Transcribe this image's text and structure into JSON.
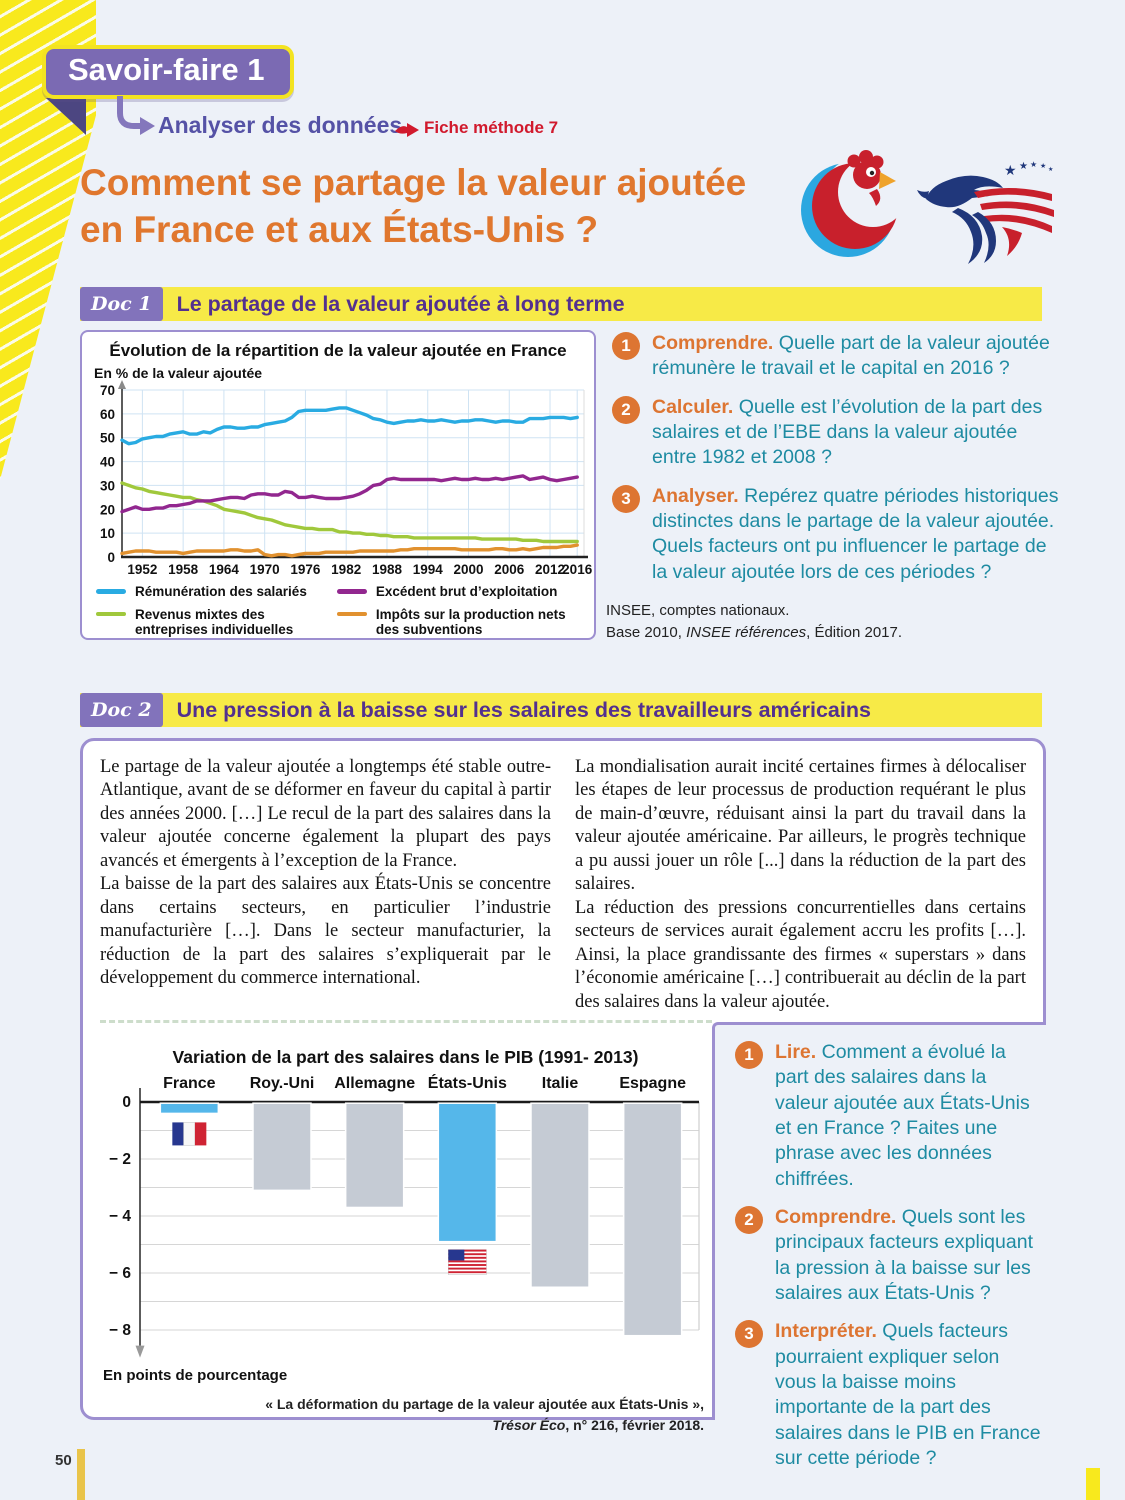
{
  "page": {
    "number": "50"
  },
  "colors": {
    "accent_purple": "#7b6ab3",
    "accent_yellow": "#f7ea47",
    "title_orange": "#e0772e",
    "question_teal": "#1e8ba2",
    "question_orange": "#dd7532",
    "method_red": "#d11a2d",
    "series_blue": "#29abe2",
    "series_green": "#a0c83c",
    "series_purple": "#92278f",
    "series_orange": "#e1912f",
    "bar_highlight": "#55b7ea",
    "bar_gray": "#c5cbd4"
  },
  "header": {
    "banner": "Savoir-faire 1",
    "subtitle": "Analyser des données",
    "method": "Fiche méthode 7",
    "title1": "Comment se partage la valeur ajoutée",
    "title2": "en France et aux États-Unis ?"
  },
  "doc1": {
    "tag": "Doc 1",
    "heading": "Le partage de la valeur ajoutée à long terme",
    "chart_title": "Évolution de la répartition de la valeur ajoutée en France",
    "chart_unit": "En % de la valeur ajoutée",
    "questions": [
      {
        "num": "1",
        "lead": "Comprendre.",
        "text": "Quelle part de la valeur ajoutée rémunère le travail et le capital en 2016 ?"
      },
      {
        "num": "2",
        "lead": "Calculer.",
        "text": "Quelle est l’évolution de la part des salaires et de l’EBE dans la valeur ajoutée entre 1982 et 2008 ?"
      },
      {
        "num": "3",
        "lead": "Analyser.",
        "text": "Repérez quatre périodes historiques distinctes dans le partage de la valeur ajoutée. Quels facteurs ont pu influencer le partage de la valeur ajoutée lors de ces périodes ?"
      }
    ],
    "source": {
      "l1": "INSEE, comptes nationaux.",
      "l2a": "Base 2010, ",
      "l2i": "INSEE références",
      "l2b": ", Édition 2017."
    }
  },
  "doc2": {
    "tag": "Doc 2",
    "heading": "Une pression à la baisse sur les salaires des travailleurs américains",
    "p1": "Le partage de la valeur ajoutée a longtemps été stable outre-Atlantique, avant de se déformer en faveur du capital à partir des années 2000. […] Le recul de la part des salaires dans la valeur ajoutée concerne également la plupart des pays avancés et émergents à l’exception de la France.",
    "p2": "La baisse de la part des salaires aux États-Unis se concentre dans certains secteurs, en particulier l’industrie manufacturière […]. Dans le secteur manufacturier, la réduction de la part des salaires s’expliquerait par le développement du commerce international.",
    "p3": "La mondialisation aurait incité certaines firmes à délocaliser les étapes de leur processus de production requérant le plus de main-d’œuvre, réduisant ainsi la part du travail dans la valeur ajoutée américaine. Par ailleurs, le progrès technique a pu aussi jouer un rôle [...] dans la réduction de la part des salaires.",
    "p4": "La réduction des pressions concurrentielles dans certains secteurs de services aurait également accru les profits […]. Ainsi, la place grandissante des firmes « superstars » dans l’économie américaine […] contribuerait au déclin de la part des salaires dans la valeur ajoutée.",
    "chart_title": "Variation de la part des salaires dans le PIB  (1991- 2013)",
    "axis_note": "En points de pourcentage",
    "caption": {
      "l1": "« La déformation du partage de la valeur ajoutée aux États-Unis »,",
      "l2i": "Trésor Éco",
      "l2b": ", n° 216, février 2018."
    },
    "questions": [
      {
        "num": "1",
        "lead": "Lire.",
        "text": "Comment a évolué la part des salaires dans la valeur ajoutée aux États-Unis et en France ? Faites une phrase avec les données chiffrées."
      },
      {
        "num": "2",
        "lead": "Comprendre.",
        "text": "Quels sont les principaux facteurs expliquant la pression à la baisse sur les salaires aux États-Unis ?"
      },
      {
        "num": "3",
        "lead": "Interpréter.",
        "text": "Quels facteurs pourraient expliquer selon vous la baisse moins importante de la part des salaires dans le PIB en France sur cette période ?"
      }
    ]
  },
  "chart_data": [
    {
      "type": "line",
      "title": "Évolution de la répartition de la valeur ajoutée en France",
      "ylabel": "En % de la valeur ajoutée",
      "x_start": 1949,
      "x_end": 2016,
      "x_axis_end": 2017,
      "x_ticks": [
        1952,
        1958,
        1964,
        1970,
        1976,
        1982,
        1988,
        1994,
        2000,
        2006,
        2012,
        2016
      ],
      "y_ticks": [
        0,
        10,
        20,
        30,
        40,
        50,
        60,
        70
      ],
      "ylim": [
        0,
        70
      ],
      "grid": true,
      "legend_position": "below",
      "series": [
        {
          "name": "Rémunération des salariés",
          "color": "#29abe2",
          "values": [
            49,
            47.5,
            48,
            49.5,
            50,
            50.5,
            50.5,
            51.5,
            52,
            52.5,
            51.5,
            51.5,
            52.5,
            52,
            53.5,
            54.5,
            54.5,
            54,
            54,
            54.5,
            54.5,
            55.5,
            56,
            56.5,
            57,
            58.5,
            61,
            61.5,
            61.5,
            61.5,
            61.5,
            62,
            62.5,
            62.5,
            61.5,
            60.5,
            59.5,
            58,
            57.5,
            56.5,
            56,
            56.5,
            57,
            57,
            57.5,
            57,
            57,
            57.5,
            57,
            56.5,
            57,
            57,
            57.5,
            57.5,
            57,
            56.5,
            57,
            57,
            56.5,
            56.5,
            58,
            58,
            58,
            58.5,
            58.5,
            58.5,
            58,
            58.5
          ]
        },
        {
          "name": "Revenus mixtes des entreprises individuelles",
          "color": "#a0c83c",
          "values": [
            31,
            30,
            29,
            28.5,
            27.5,
            27,
            26.5,
            26,
            25.5,
            25,
            25,
            24,
            23.5,
            22.5,
            21.5,
            20,
            19.5,
            19,
            18.5,
            17.5,
            16.5,
            16,
            15.5,
            14.5,
            13.5,
            13,
            12.5,
            12,
            12,
            11.5,
            11.5,
            11.5,
            10.5,
            10.5,
            10,
            10,
            9.5,
            9.5,
            9,
            9,
            8.5,
            8.5,
            8.5,
            8,
            8,
            8,
            8,
            8,
            8,
            8,
            8,
            8,
            8,
            7.5,
            7.5,
            7.5,
            7.5,
            7.5,
            7.5,
            7,
            7,
            7,
            6.5,
            6.5,
            6.5,
            6.5,
            6.5,
            6.5
          ]
        },
        {
          "name": "Excédent brut d’exploitation",
          "color": "#92278f",
          "values": [
            19,
            20,
            21,
            20,
            20,
            20.5,
            20.5,
            21.5,
            21.5,
            22,
            22.5,
            23.5,
            23.5,
            23.5,
            24,
            24.5,
            25,
            25,
            24.5,
            26,
            26.5,
            26.5,
            26,
            26,
            27.5,
            27,
            25,
            25,
            25.5,
            25,
            24.5,
            24.5,
            24.5,
            25,
            25.5,
            26.5,
            28,
            30,
            30.5,
            32.5,
            33,
            32.5,
            32.5,
            32.5,
            32.5,
            32.5,
            32.5,
            32,
            32.5,
            33,
            32.5,
            32.5,
            33,
            32.5,
            32.5,
            33,
            32.5,
            33,
            33.5,
            34,
            32.5,
            33,
            33.5,
            32.5,
            32,
            32.5,
            33,
            33.5
          ]
        },
        {
          "name": "Impôts sur la production nets des subventions",
          "color": "#e1912f",
          "values": [
            1.5,
            2,
            2.5,
            2.5,
            2.5,
            2,
            2,
            2,
            2,
            1.5,
            2,
            2.5,
            2.5,
            2.5,
            2.5,
            2.5,
            3,
            3,
            2.5,
            2.5,
            3,
            1,
            0.5,
            1,
            1,
            0.5,
            1,
            1.5,
            1.5,
            1.5,
            2,
            2,
            2,
            2,
            2,
            2.5,
            2.5,
            2.5,
            2.5,
            2.5,
            2.5,
            3,
            3,
            3.5,
            3.5,
            3.5,
            3.5,
            3.5,
            3.5,
            3.5,
            3,
            3,
            3,
            3,
            3,
            3.5,
            3.5,
            3,
            3,
            3.5,
            3,
            3.5,
            4,
            4,
            4,
            4.5,
            4.5,
            5
          ]
        }
      ],
      "source": "INSEE, comptes nationaux. Base 2010, INSEE références, Édition 2017."
    },
    {
      "type": "bar",
      "title": "Variation de la part des salaires dans le PIB (1991- 2013)",
      "categories": [
        "France",
        "Roy.-Uni",
        "Allemagne",
        "États-Unis",
        "Italie",
        "Espagne"
      ],
      "values": [
        -0.4,
        -3.1,
        -3.7,
        -4.9,
        -6.5,
        -8.2
      ],
      "bar_colors": [
        "#55b7ea",
        "#c5cbd4",
        "#c5cbd4",
        "#55b7ea",
        "#c5cbd4",
        "#c5cbd4"
      ],
      "flags": {
        "France": "fr",
        "États-Unis": "us"
      },
      "y_ticks": [
        "0",
        "− 2",
        "− 4",
        "− 6",
        "− 8"
      ],
      "ylim": [
        -8.5,
        0
      ],
      "grid": true,
      "ylabel": "En points de pourcentage",
      "source": "« La déformation du partage de la valeur ajoutée aux États-Unis », Trésor Éco, n° 216, février 2018."
    }
  ]
}
